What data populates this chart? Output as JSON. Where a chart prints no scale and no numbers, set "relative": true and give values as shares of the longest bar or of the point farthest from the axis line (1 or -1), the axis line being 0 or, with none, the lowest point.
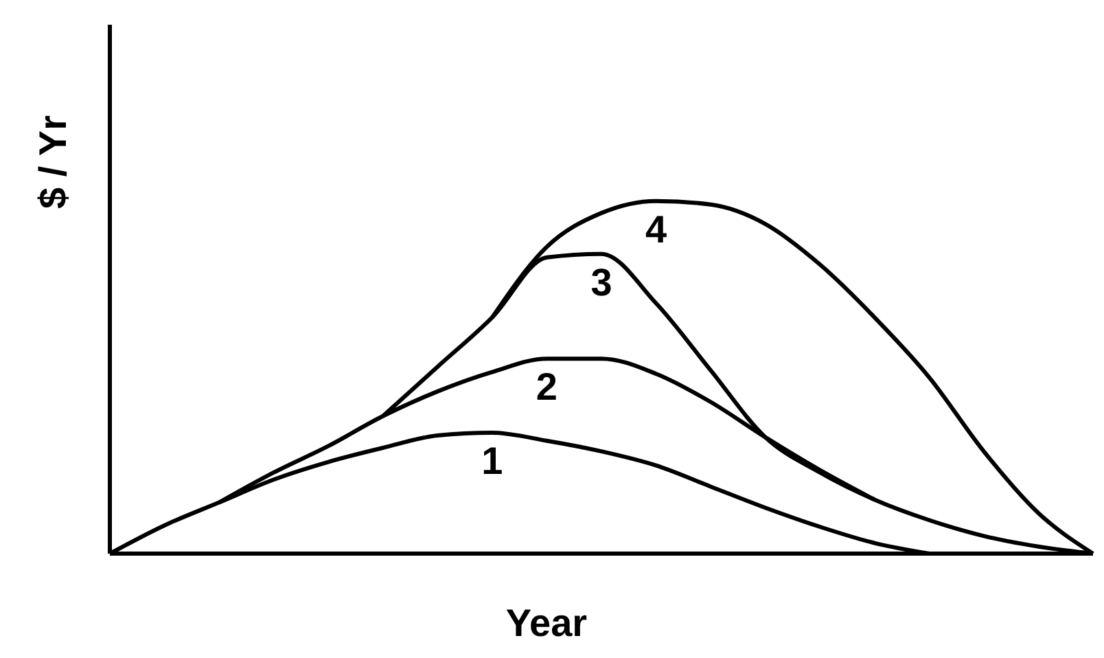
{
  "chart_data": {
    "type": "line",
    "relative": true,
    "xlabel": "Year",
    "ylabel": "$ / Yr",
    "marker": "none",
    "line_style": "solid",
    "categories": [
      null,
      null,
      null,
      null,
      null,
      null,
      null,
      null,
      null,
      null,
      null,
      null,
      null,
      null,
      null,
      null,
      null,
      null,
      null
    ],
    "series": [
      {
        "name": "1",
        "color": "#000000",
        "values": [
          0,
          0.08,
          0.145,
          0.21,
          0.26,
          0.3,
          0.335,
          0.343,
          0.32,
          0.29,
          0.25,
          0.19,
          0.13,
          0.076,
          0.03,
          0,
          null,
          null,
          null
        ]
      },
      {
        "name": "2",
        "color": "#000000",
        "values": [
          null,
          null,
          0.145,
          0.23,
          0.305,
          0.39,
          0.46,
          0.515,
          0.553,
          0.553,
          0.51,
          0.43,
          0.33,
          0.237,
          0.153,
          null,
          null,
          null,
          null
        ]
      },
      {
        "name": "3",
        "color": "#000000",
        "values": [
          null,
          null,
          null,
          null,
          null,
          0.39,
          0.53,
          0.67,
          0.84,
          0.85,
          0.71,
          0.52,
          0.33,
          0.23,
          0.153,
          0.095,
          0.05,
          0.02,
          0
        ]
      },
      {
        "name": "4",
        "color": "#000000",
        "values": [
          null,
          null,
          null,
          null,
          null,
          null,
          null,
          0.67,
          0.87,
          0.966,
          1,
          0.99,
          0.935,
          0.82,
          0.67,
          0.5,
          0.29,
          0.115,
          0
        ]
      }
    ]
  }
}
